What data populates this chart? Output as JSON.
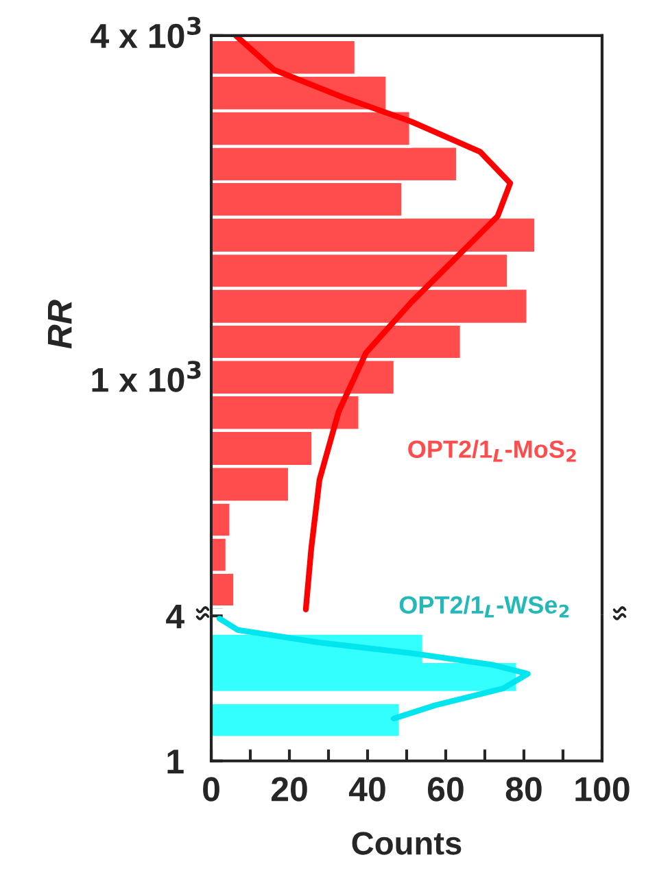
{
  "chart_data": [
    {
      "type": "histogram",
      "orientation": "horizontal",
      "log": "y",
      "ylabel": "RR",
      "xlim": [
        0,
        100
      ],
      "ylim": [
        390,
        4000
      ],
      "tick_labels": "y",
      "yticks": [
        {
          "value": 4000,
          "label": "4 x 10$^{3}$"
        },
        {
          "value": 3000,
          "label": null
        },
        {
          "value": 2000,
          "label": null
        },
        {
          "value": 1000,
          "label": "1 x 10$^{3}$"
        },
        {
          "value": 900,
          "label": null
        },
        {
          "value": 800,
          "label": null
        },
        {
          "value": 700,
          "label": null
        },
        {
          "value": 600,
          "label": null
        },
        {
          "value": 500,
          "label": null
        },
        {
          "value": 400,
          "label": null
        }
      ],
      "series": [
        {
          "type": "histogram",
          "name": "OPT2/1$_{L}$-MoS$_{2}$",
          "color": "#ff4d4d",
          "bins": [
            400,
            460,
            530,
            610,
            705,
            815,
            940,
            1085,
            1250,
            1445,
            1665,
            1925,
            2220,
            2560,
            2955,
            3410,
            3935
          ],
          "values": [
            6,
            4,
            5,
            20,
            26,
            38,
            47,
            64,
            81,
            76,
            83,
            49,
            63,
            51,
            45,
            37
          ]
        },
        {
          "type": "line",
          "color": "#ff0000",
          "values": [
            6.3,
            16.1,
            33.7,
            51.2,
            68.8,
            76.5,
            73.3,
            62.8,
            51.2,
            39.6,
            32.6,
            27.7,
            25.6,
            24.2
          ],
          "x": [
            4000,
            3485,
            3120,
            2828,
            2504,
            2207,
            1933,
            1638,
            1366,
            1114,
            879,
            668,
            507,
            396
          ]
        }
      ]
    },
    {
      "type": "histogram",
      "orientation": "horizontal",
      "log": "y",
      "xlabel": "Counts",
      "xlim": [
        0,
        100
      ],
      "ylim": [
        1,
        4
      ],
      "xticks": [
        0,
        {
          "value": 10,
          "label": null
        },
        20,
        {
          "value": 30,
          "label": null
        },
        40,
        {
          "value": 50,
          "label": null
        },
        60,
        {
          "value": 70,
          "label": null
        },
        80,
        {
          "value": 90,
          "label": null
        },
        100
      ],
      "yticks": [
        1,
        {
          "value": 2,
          "label": null
        },
        {
          "value": 3,
          "label": null
        },
        4
      ],
      "series": [
        {
          "type": "histogram",
          "name": "OPT2/1$_{L}$-WSe$_{2}$",
          "color": "#33ffff",
          "bins": [
            1.27,
            1.72,
            1.95,
            2.55,
            3.34
          ],
          "values": [
            48,
            0,
            78,
            54
          ]
        },
        {
          "type": "line",
          "color": "#00e5ee",
          "values": [
            2.1,
            6.7,
            27.7,
            51.2,
            72.3,
            81,
            74.7,
            57.2,
            46.7
          ],
          "x": [
            3.9,
            3.5,
            3.1,
            2.8,
            2.5,
            2.3,
            2.0,
            1.7,
            1.5
          ]
        }
      ]
    }
  ]
}
